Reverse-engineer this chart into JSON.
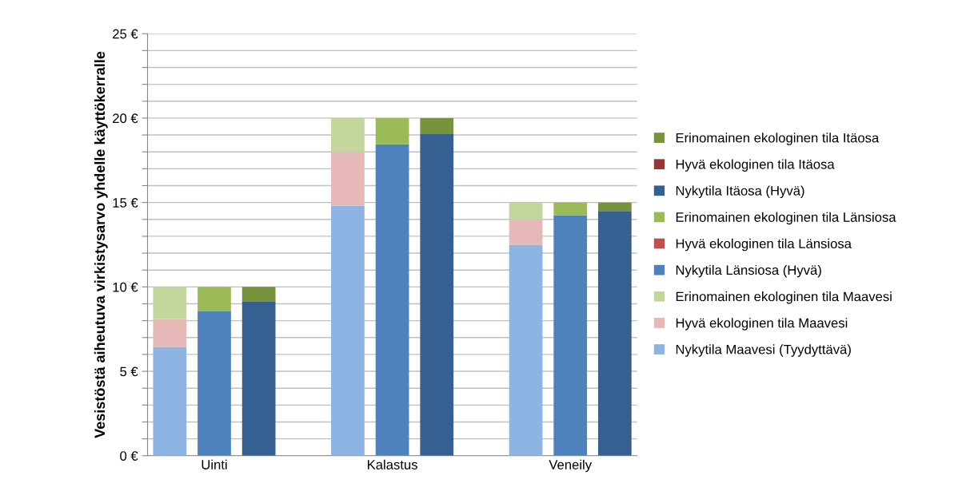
{
  "chart_data": {
    "type": "bar",
    "stacked": true,
    "ylabel": "Vesistöstä aiheutuva virkistysarvo yhdelle käyttökerralle",
    "categories": [
      null,
      "Uinti",
      null,
      null,
      null,
      "Kalastus",
      null,
      null,
      null,
      "Veneily",
      null
    ],
    "series": [
      {
        "name": "Nykytila Maavesi (Tyydyttävä)",
        "color": "#8eb4e3",
        "values": [
          6.45,
          null,
          null,
          null,
          14.8,
          null,
          null,
          null,
          12.5,
          null,
          null
        ]
      },
      {
        "name": "Hyvä ekologinen tila Maavesi",
        "color": "#e6b9b8",
        "values": [
          1.65,
          null,
          null,
          null,
          3.2,
          null,
          null,
          null,
          1.5,
          null,
          null
        ]
      },
      {
        "name": "Erinomainen ekologinen tila Maavesi",
        "color": "#c3d69b",
        "values": [
          1.9,
          null,
          null,
          null,
          2.0,
          null,
          null,
          null,
          1.0,
          null,
          null
        ]
      },
      {
        "name": "Nykytila Länsiosa (Hyvä)",
        "color": "#4f81bd",
        "values": [
          null,
          8.55,
          null,
          null,
          null,
          18.45,
          null,
          null,
          null,
          14.25,
          null
        ]
      },
      {
        "name": "Hyvä ekologinen tila Länsiosa",
        "color": "#c0504d",
        "values": [
          null,
          0,
          null,
          null,
          null,
          0,
          null,
          null,
          null,
          0,
          null
        ]
      },
      {
        "name": "Erinomainen ekologinen tila Länsiosa",
        "color": "#9bbb59",
        "values": [
          null,
          1.45,
          null,
          null,
          null,
          1.55,
          null,
          null,
          null,
          0.75,
          null
        ]
      },
      {
        "name": "Nykytila Itäosa (Hyvä)",
        "color": "#376092",
        "values": [
          null,
          null,
          9.15,
          null,
          null,
          null,
          19.05,
          null,
          null,
          null,
          14.5
        ]
      },
      {
        "name": "Hyvä ekologinen tila Itäosa",
        "color": "#953735",
        "values": [
          null,
          null,
          0,
          null,
          null,
          null,
          0,
          null,
          null,
          null,
          0
        ]
      },
      {
        "name": "Erinomainen ekologinen tila Itäosa",
        "color": "#77933c",
        "values": [
          null,
          null,
          0.85,
          null,
          null,
          null,
          0.95,
          null,
          null,
          null,
          0.5
        ]
      }
    ],
    "ylim": [
      0,
      25
    ],
    "yticks": [
      {
        "value": 0,
        "label": "0 €"
      },
      {
        "value": 1,
        "label": null
      },
      {
        "value": 2,
        "label": null
      },
      {
        "value": 3,
        "label": null
      },
      {
        "value": 4,
        "label": null
      },
      {
        "value": 5,
        "label": "5 €"
      },
      {
        "value": 6,
        "label": null
      },
      {
        "value": 7,
        "label": null
      },
      {
        "value": 8,
        "label": null
      },
      {
        "value": 9,
        "label": null
      },
      {
        "value": 10,
        "label": "10 €"
      },
      {
        "value": 11,
        "label": null
      },
      {
        "value": 12,
        "label": null
      },
      {
        "value": 13,
        "label": null
      },
      {
        "value": 14,
        "label": null
      },
      {
        "value": 15,
        "label": "15 €"
      },
      {
        "value": 16,
        "label": null
      },
      {
        "value": 17,
        "label": null
      },
      {
        "value": 18,
        "label": null
      },
      {
        "value": 19,
        "label": null
      },
      {
        "value": 20,
        "label": "20 €"
      },
      {
        "value": 21,
        "label": null
      },
      {
        "value": 22,
        "label": null
      },
      {
        "value": 23,
        "label": null
      },
      {
        "value": 24,
        "label": null
      },
      {
        "value": 25,
        "label": "25 €"
      }
    ],
    "grid": "y",
    "legend": "right"
  }
}
